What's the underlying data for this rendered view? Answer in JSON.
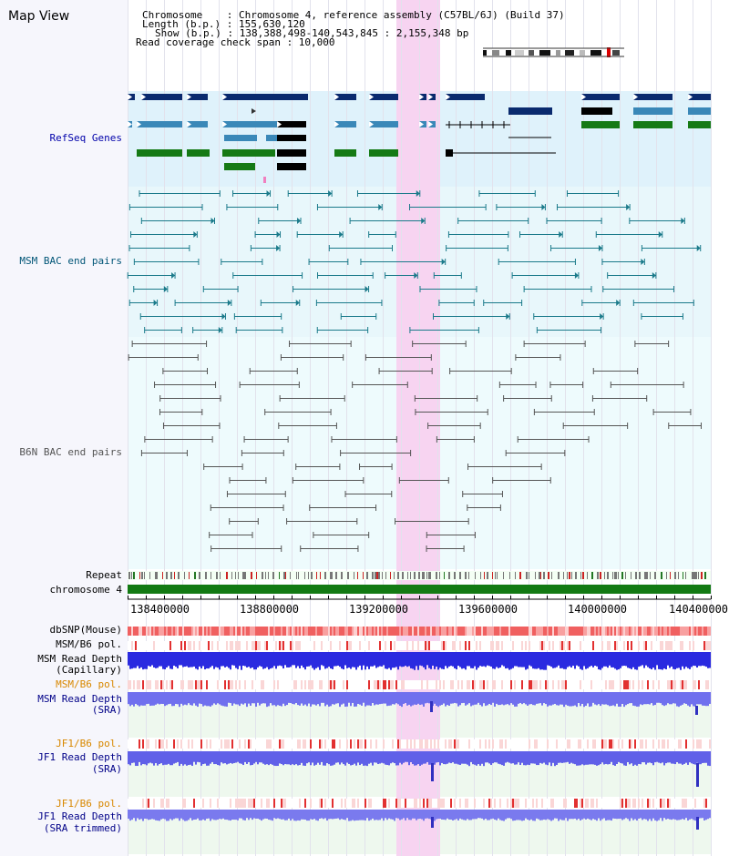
{
  "page": {
    "title": "Map View"
  },
  "info": {
    "chromosome": "Chromosome    : Chromosome 4, reference assembly (C57BL/6J) (Build 37)",
    "length": "Length (b.p.) : 155,630,120",
    "show": "Show (b.p.) : 138,388,498-140,543,845 : 2,155,348 bp",
    "coverage": "Read coverage check span : 10,000"
  },
  "tracks": {
    "refseq": "RefSeq Genes",
    "msm_bac": "MSM BAC end pairs",
    "b6n_bac": "B6N BAC end pairs",
    "repeat": "Repeat",
    "chromosome": "chromosome 4",
    "dbsnp": "dbSNP(Mouse)",
    "msm_b6_pol": "MSM/B6 pol.",
    "msm_depth_cap_1": "MSM Read Depth",
    "msm_depth_cap_2": "(Capillary)",
    "msm_b6_pol2": "MSM/B6 pol.",
    "msm_depth_sra_1": "MSM Read Depth",
    "msm_depth_sra_2": "(SRA)",
    "jf1_b6_pol": "JF1/B6 pol.",
    "jf1_depth_1": "JF1 Read Depth",
    "jf1_depth_2": "(SRA)",
    "jf1_b6_pol2": "JF1/B6 pol.",
    "jf1_trim_1": "JF1 Read Depth",
    "jf1_trim_2": "(SRA trimmed)"
  },
  "axis": {
    "ticks": [
      "138400000",
      "138800000",
      "139200000",
      "139600000",
      "140000000",
      "140400000"
    ]
  },
  "colors": {
    "refseq_bg": "#dff2fb",
    "bac_bg": "#e8f7fb",
    "highlight": "#f7d4f1",
    "gene_dark": "#0a2a6e",
    "gene_mid": "#3a88b8",
    "gene_green": "#157a15",
    "msm_bac": "#1a7a8a",
    "b6n_bac": "#555555",
    "chromosome_bar": "#137a13",
    "label_blue": "#000088",
    "label_orange": "#d88800",
    "label_teal": "#005577"
  }
}
